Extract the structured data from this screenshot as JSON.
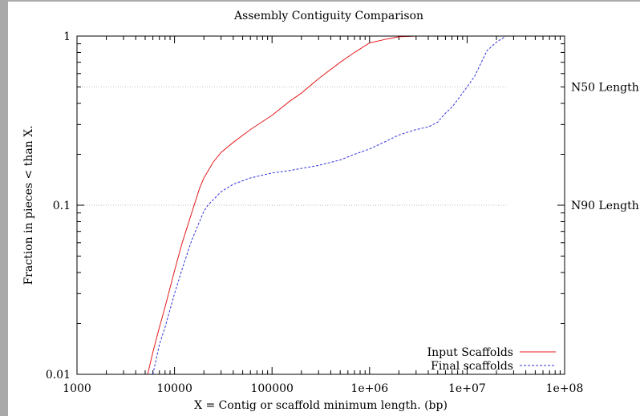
{
  "chart_data": {
    "type": "line",
    "title": "Assembly Contiguity Comparison",
    "xlabel": "X = Contig or scaffold minimum length. (bp)",
    "ylabel": "Fraction in pieces < than X.",
    "xscale": "log",
    "yscale": "log",
    "xlim": [
      1000,
      100000000
    ],
    "ylim": [
      0.01,
      1
    ],
    "x_ticks": [
      {
        "value": 1000,
        "label": "1000"
      },
      {
        "value": 10000,
        "label": "10000"
      },
      {
        "value": 100000,
        "label": "100000"
      },
      {
        "value": 1000000,
        "label": "1e+06"
      },
      {
        "value": 10000000,
        "label": "1e+07"
      },
      {
        "value": 100000000,
        "label": "1e+08"
      }
    ],
    "y_ticks": [
      {
        "value": 0.01,
        "label": "0.01"
      },
      {
        "value": 0.1,
        "label": "0.1"
      },
      {
        "value": 1,
        "label": "1"
      }
    ],
    "reference_lines": [
      {
        "y": 0.5,
        "x_end": 25000000,
        "label": "N50 Length",
        "color": "#bbbbbb"
      },
      {
        "y": 0.1,
        "x_end": 25000000,
        "label": "N90 Length",
        "color": "#bbbbbb"
      }
    ],
    "legend": "bottom-right",
    "grid": false,
    "series": [
      {
        "name": "Input Scaffolds",
        "color": "#e41a1c",
        "style": "solid",
        "points": [
          [
            5300,
            0.01
          ],
          [
            6000,
            0.0135
          ],
          [
            7000,
            0.019
          ],
          [
            8000,
            0.025
          ],
          [
            10000,
            0.041
          ],
          [
            12000,
            0.06
          ],
          [
            15000,
            0.09
          ],
          [
            18000,
            0.125
          ],
          [
            20000,
            0.145
          ],
          [
            25000,
            0.18
          ],
          [
            30000,
            0.205
          ],
          [
            40000,
            0.235
          ],
          [
            60000,
            0.28
          ],
          [
            100000,
            0.34
          ],
          [
            150000,
            0.41
          ],
          [
            200000,
            0.46
          ],
          [
            300000,
            0.56
          ],
          [
            500000,
            0.7
          ],
          [
            700000,
            0.8
          ],
          [
            1000000,
            0.91
          ],
          [
            1500000,
            0.96
          ],
          [
            2000000,
            0.99
          ],
          [
            3000000,
            1.0
          ],
          [
            25000000,
            1.0
          ]
        ]
      },
      {
        "name": "Final scaffolds",
        "color": "#3333dd",
        "style": "dashed",
        "points": [
          [
            6000,
            0.01
          ],
          [
            7000,
            0.015
          ],
          [
            8000,
            0.019
          ],
          [
            10000,
            0.03
          ],
          [
            12000,
            0.042
          ],
          [
            15000,
            0.062
          ],
          [
            20000,
            0.092
          ],
          [
            22000,
            0.1
          ],
          [
            30000,
            0.12
          ],
          [
            40000,
            0.133
          ],
          [
            60000,
            0.145
          ],
          [
            100000,
            0.155
          ],
          [
            150000,
            0.16
          ],
          [
            200000,
            0.165
          ],
          [
            300000,
            0.172
          ],
          [
            500000,
            0.185
          ],
          [
            700000,
            0.2
          ],
          [
            1000000,
            0.215
          ],
          [
            1500000,
            0.24
          ],
          [
            2000000,
            0.26
          ],
          [
            3000000,
            0.28
          ],
          [
            4000000,
            0.29
          ],
          [
            5000000,
            0.31
          ],
          [
            6000000,
            0.35
          ],
          [
            7000000,
            0.38
          ],
          [
            8000000,
            0.42
          ],
          [
            10000000,
            0.5
          ],
          [
            12000000,
            0.58
          ],
          [
            14000000,
            0.7
          ],
          [
            16000000,
            0.82
          ],
          [
            20000000,
            0.92
          ],
          [
            25000000,
            1.0
          ]
        ]
      }
    ]
  }
}
